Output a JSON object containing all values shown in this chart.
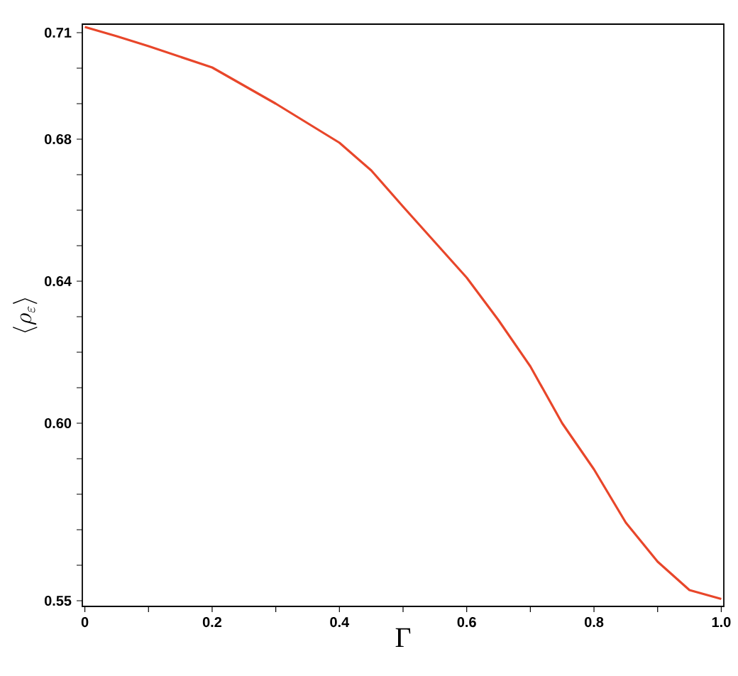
{
  "chart_data": {
    "type": "line",
    "xlabel": "Γ",
    "ylabel": "\\langle \\rho_{\\varepsilon} \\rangle",
    "x": [
      0,
      0.05,
      0.1,
      0.2,
      0.3,
      0.4,
      0.45,
      0.5,
      0.6,
      0.65,
      0.7,
      0.75,
      0.8,
      0.85,
      0.9,
      0.95,
      1.0
    ],
    "series": [
      {
        "color": "#e8462a",
        "values": [
          0.7116,
          0.709,
          0.7062,
          0.7002,
          0.69,
          0.679,
          0.6712,
          0.661,
          0.641,
          0.629,
          0.616,
          0.6,
          0.587,
          0.572,
          0.561,
          0.553,
          0.5505
        ]
      }
    ],
    "xlim": [
      -0.004,
      1.004
    ],
    "ylim": [
      0.5484,
      0.7124
    ],
    "xticks": [
      0,
      {
        "value": 0.1,
        "label": null
      },
      0.2,
      {
        "value": 0.3,
        "label": null
      },
      0.4,
      {
        "value": 0.5,
        "label": null
      },
      0.6,
      {
        "value": 0.7,
        "label": null
      },
      0.8,
      {
        "value": 0.9,
        "label": null
      },
      {
        "value": 1,
        "label": "1.0"
      }
    ],
    "yticks": [
      0.55,
      {
        "value": 0.56,
        "label": null
      },
      {
        "value": 0.57,
        "label": null
      },
      {
        "value": 0.58,
        "label": null
      },
      {
        "value": 0.59,
        "label": null
      },
      {
        "value": 0.6,
        "label": "0.60"
      },
      {
        "value": 0.61,
        "label": null
      },
      {
        "value": 0.62,
        "label": null
      },
      {
        "value": 0.63,
        "label": null
      },
      0.64,
      {
        "value": 0.65,
        "label": null
      },
      {
        "value": 0.66,
        "label": null
      },
      {
        "value": 0.67,
        "label": null
      },
      0.68,
      {
        "value": 0.69,
        "label": null
      },
      {
        "value": 0.7,
        "label": null
      },
      0.71
    ],
    "grid": false,
    "marker": "none",
    "line_style": "solid"
  }
}
